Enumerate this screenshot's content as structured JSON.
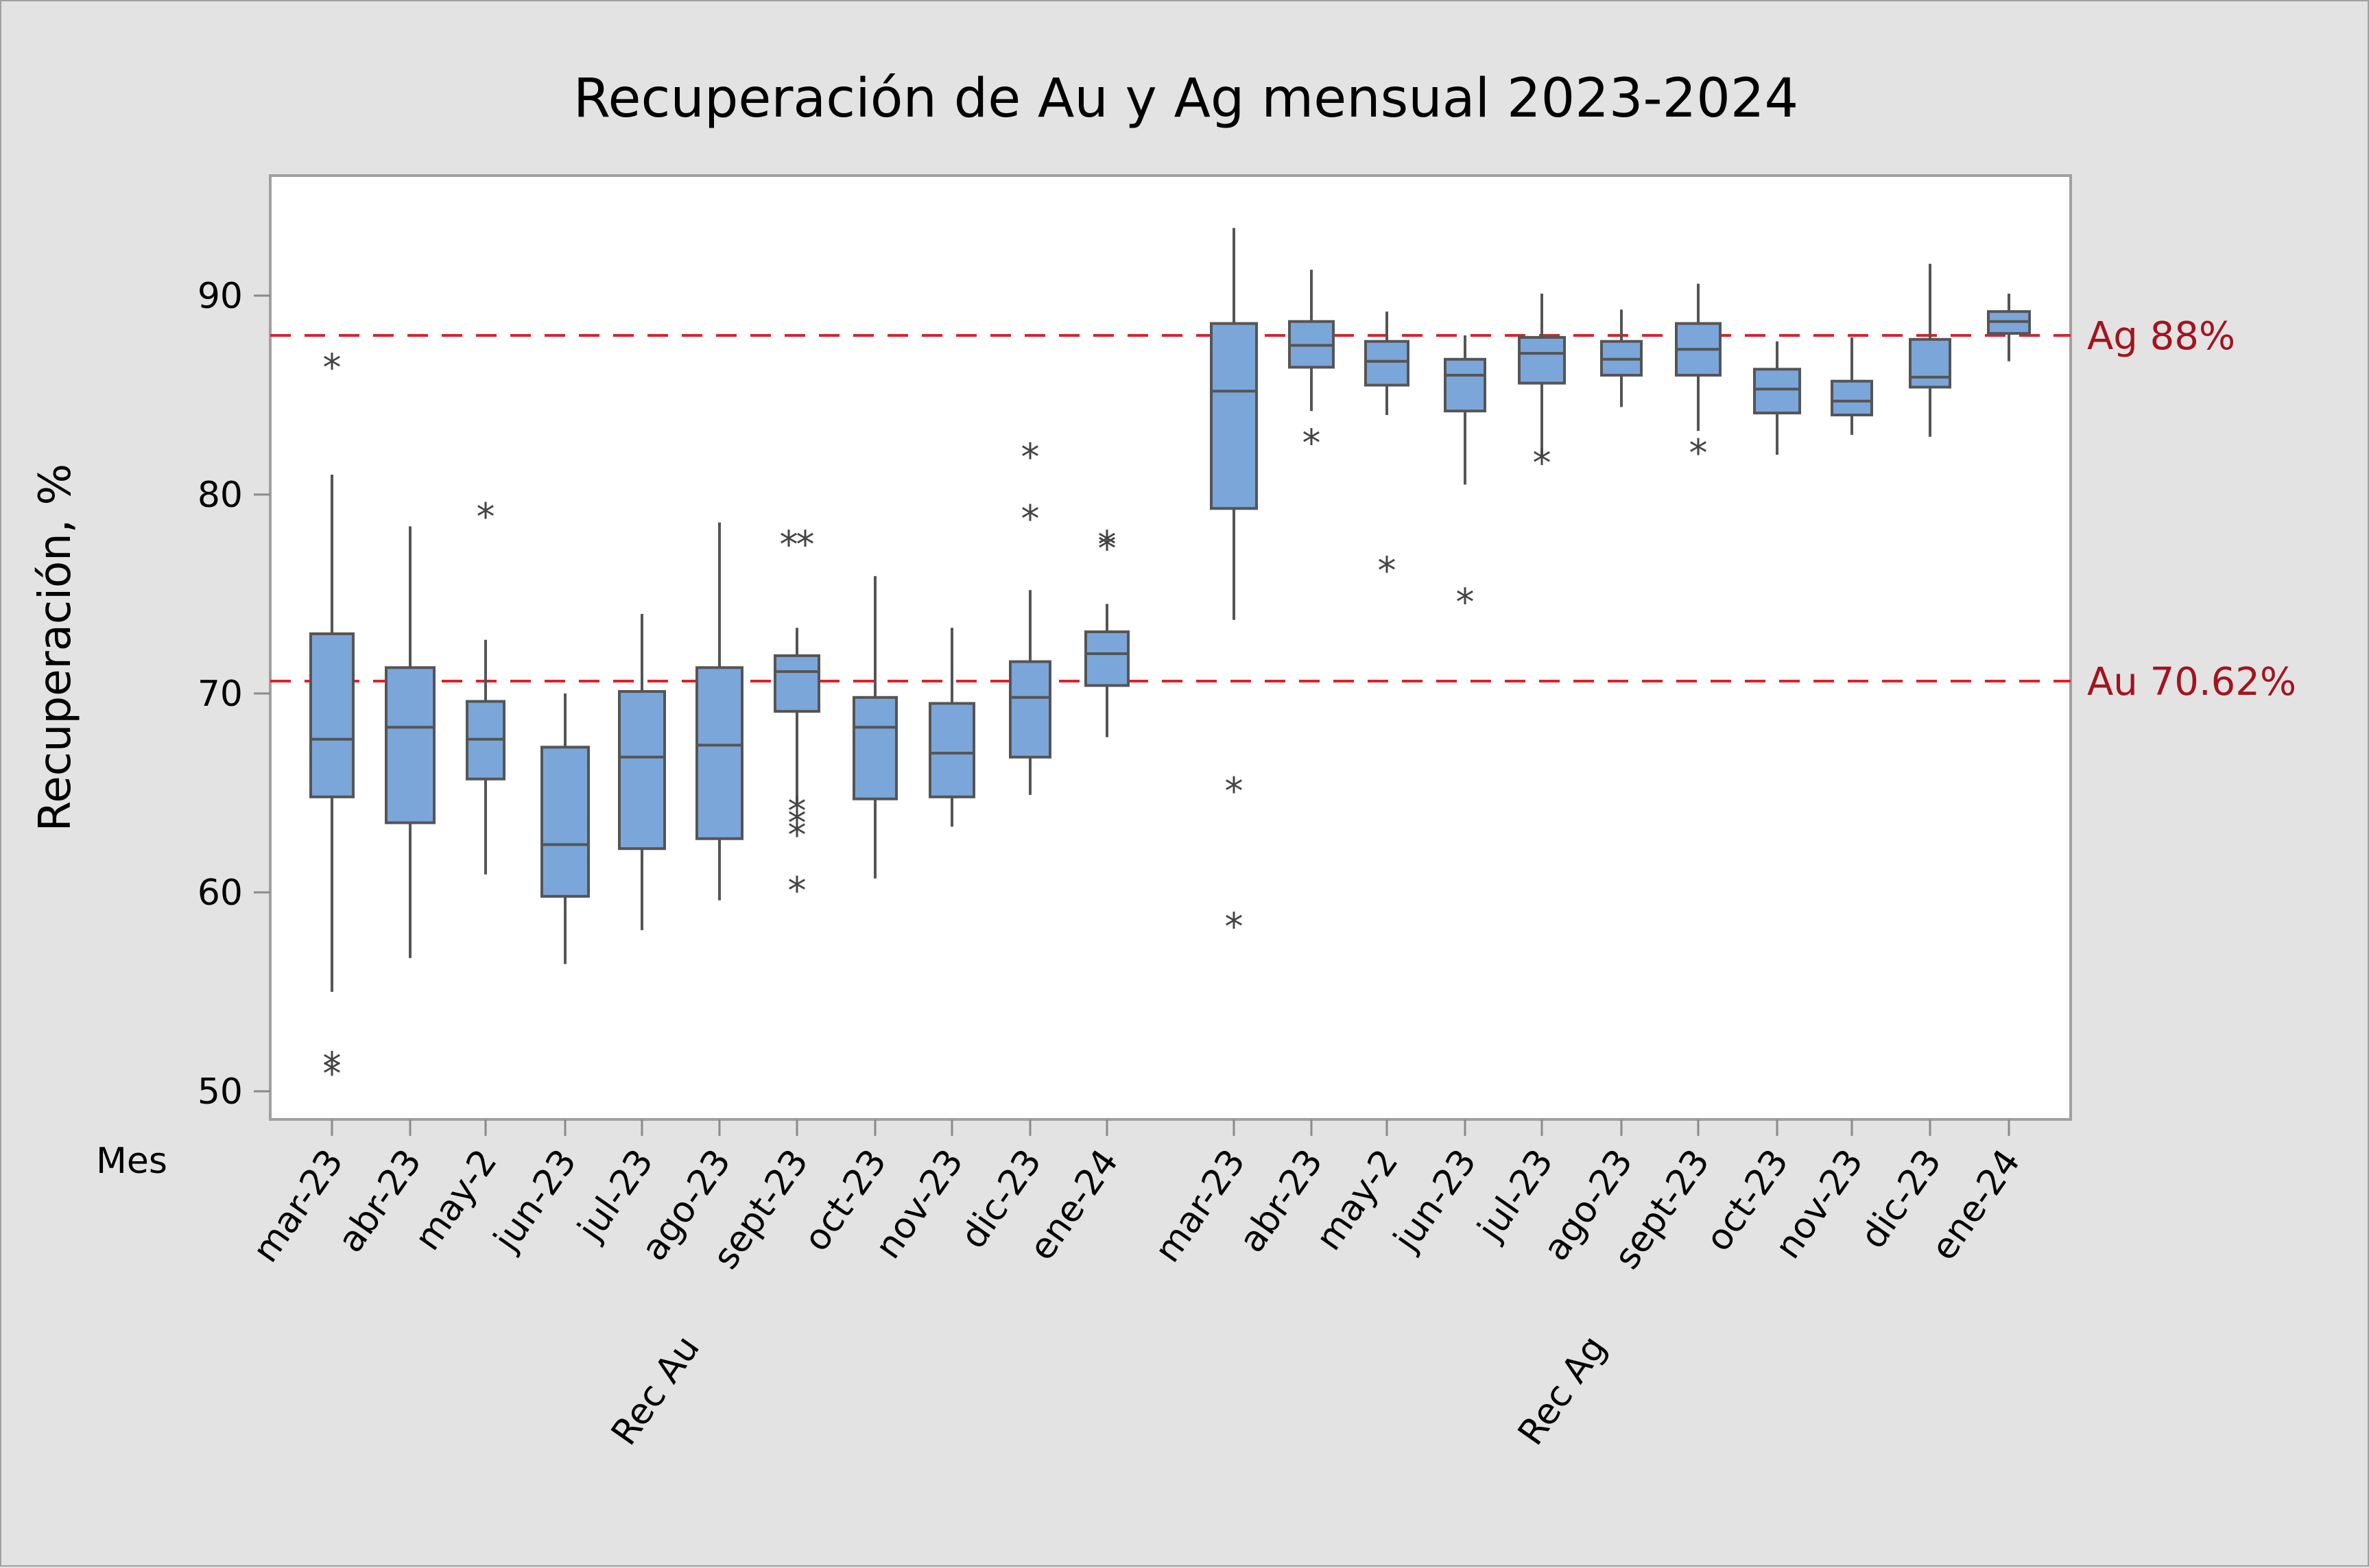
{
  "chart_data": {
    "type": "boxplot",
    "title": "Recuperación de Au y Ag mensual 2023-2024",
    "ylabel": "Recuperación, %",
    "xlabel_row": "Mes",
    "ylim": [
      48.7,
      96.1
    ],
    "yticks": [
      50,
      60,
      70,
      80,
      90
    ],
    "grid": false,
    "groups": [
      {
        "name": "RecAu",
        "categories": [
          "mar-23",
          "abr-23",
          "may-2",
          "jun-23",
          "jul-23",
          "ago-23",
          "sept-23",
          "oct-23",
          "nov-23",
          "dic-23",
          "ene-24"
        ],
        "boxes": [
          {
            "whisker_low": 55.0,
            "q1": 64.8,
            "median": 67.7,
            "q3": 73.0,
            "whisker_high": 81.0,
            "outliers": [
              86.5,
              51.4,
              51.0
            ]
          },
          {
            "whisker_low": 56.7,
            "q1": 63.5,
            "median": 68.3,
            "q3": 71.3,
            "whisker_high": 78.4,
            "outliers": []
          },
          {
            "whisker_low": 60.9,
            "q1": 65.7,
            "median": 67.7,
            "q3": 69.6,
            "whisker_high": 72.7,
            "outliers": [
              79.0
            ]
          },
          {
            "whisker_low": 56.4,
            "q1": 59.8,
            "median": 62.4,
            "q3": 67.3,
            "whisker_high": 70.0,
            "outliers": []
          },
          {
            "whisker_low": 58.1,
            "q1": 62.2,
            "median": 66.8,
            "q3": 70.1,
            "whisker_high": 74.0,
            "outliers": []
          },
          {
            "whisker_low": 59.6,
            "q1": 62.7,
            "median": 67.4,
            "q3": 71.3,
            "whisker_high": 78.6,
            "outliers": []
          },
          {
            "whisker_low": 64.5,
            "q1": 69.1,
            "median": 71.1,
            "q3": 71.9,
            "whisker_high": 73.3,
            "outliers": [
              77.6,
              77.6,
              64.2,
              63.6,
              63.0,
              60.2
            ]
          },
          {
            "whisker_low": 60.7,
            "q1": 64.7,
            "median": 68.3,
            "q3": 69.8,
            "whisker_high": 75.9,
            "outliers": []
          },
          {
            "whisker_low": 63.3,
            "q1": 64.8,
            "median": 67.0,
            "q3": 69.5,
            "whisker_high": 73.3,
            "outliers": []
          },
          {
            "whisker_low": 64.9,
            "q1": 66.8,
            "median": 69.8,
            "q3": 71.6,
            "whisker_high": 75.2,
            "outliers": [
              82.0,
              78.9
            ]
          },
          {
            "whisker_low": 67.8,
            "q1": 70.4,
            "median": 72.0,
            "q3": 73.1,
            "whisker_high": 74.5,
            "outliers": [
              77.6,
              77.4
            ]
          }
        ]
      },
      {
        "name": "RecAg",
        "categories": [
          "mar-23",
          "abr-23",
          "may-2",
          "jun-23",
          "jul-23",
          "ago-23",
          "sept-23",
          "oct-23",
          "nov-23",
          "dic-23",
          "ene-24"
        ],
        "boxes": [
          {
            "whisker_low": 73.7,
            "q1": 79.3,
            "median": 85.2,
            "q3": 88.6,
            "whisker_high": 93.4,
            "outliers": [
              65.2,
              58.4
            ]
          },
          {
            "whisker_low": 84.2,
            "q1": 86.4,
            "median": 87.5,
            "q3": 88.7,
            "whisker_high": 91.3,
            "outliers": [
              82.7
            ]
          },
          {
            "whisker_low": 84.0,
            "q1": 85.5,
            "median": 86.7,
            "q3": 87.7,
            "whisker_high": 89.2,
            "outliers": [
              76.3
            ]
          },
          {
            "whisker_low": 80.5,
            "q1": 84.2,
            "median": 86.0,
            "q3": 86.8,
            "whisker_high": 88.0,
            "outliers": [
              74.7
            ]
          },
          {
            "whisker_low": 81.9,
            "q1": 85.6,
            "median": 87.1,
            "q3": 87.9,
            "whisker_high": 90.1,
            "outliers": [
              81.7
            ]
          },
          {
            "whisker_low": 84.4,
            "q1": 86.0,
            "median": 86.8,
            "q3": 87.7,
            "whisker_high": 89.3,
            "outliers": []
          },
          {
            "whisker_low": 83.2,
            "q1": 86.0,
            "median": 87.3,
            "q3": 88.6,
            "whisker_high": 90.6,
            "outliers": [
              82.2
            ]
          },
          {
            "whisker_low": 82.0,
            "q1": 84.1,
            "median": 85.3,
            "q3": 86.3,
            "whisker_high": 87.7,
            "outliers": []
          },
          {
            "whisker_low": 83.0,
            "q1": 84.0,
            "median": 84.7,
            "q3": 85.7,
            "whisker_high": 87.9,
            "outliers": []
          },
          {
            "whisker_low": 82.9,
            "q1": 85.4,
            "median": 85.9,
            "q3": 87.8,
            "whisker_high": 91.6,
            "outliers": []
          },
          {
            "whisker_low": 86.7,
            "q1": 88.1,
            "median": 88.7,
            "q3": 89.2,
            "whisker_high": 90.1,
            "outliers": []
          }
        ]
      }
    ],
    "reference_lines": [
      {
        "label": "Ag 88%",
        "value": 88.0,
        "color": "#d9232e",
        "style": "dashed"
      },
      {
        "label": "Au 70.62%",
        "value": 70.62,
        "color": "#d9232e",
        "style": "dashed"
      }
    ],
    "box_color": "#7ba6da",
    "edge_color": "#555555"
  }
}
